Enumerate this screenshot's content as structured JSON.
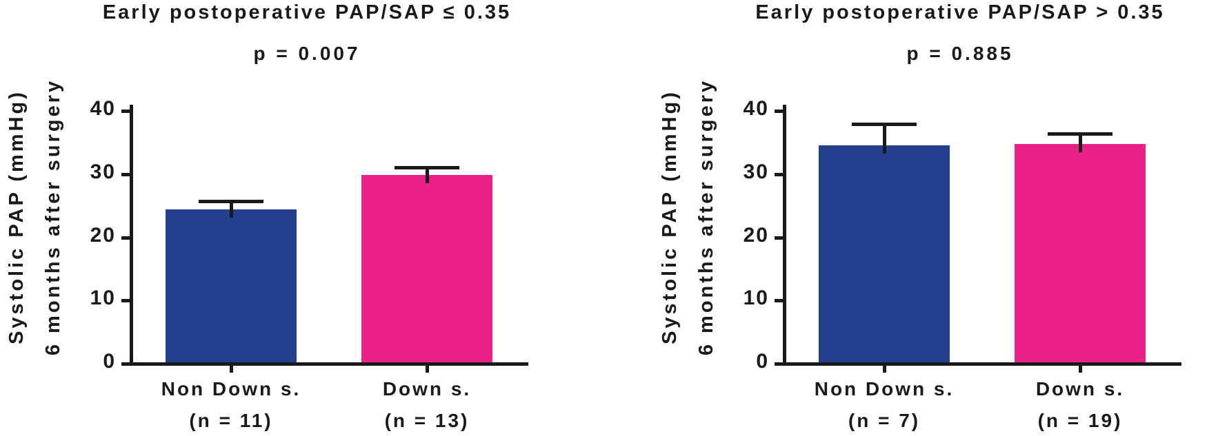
{
  "figure": {
    "background": "#ffffff",
    "text_color": "#1a1a1a",
    "bar_colors": {
      "non_down": "#24408E",
      "down": "#EA2287"
    }
  },
  "chart_data": [
    {
      "type": "bar",
      "title": "Early postoperative PAP/SAP ≤ 0.35",
      "p_label": "p = 0.007",
      "ylabel_line1": "Systolic PAP (mmHg)",
      "ylabel_line2": "6 months after surgery",
      "ylim": [
        0,
        40
      ],
      "yticks": [
        0,
        10,
        20,
        30,
        40
      ],
      "grid": false,
      "legend": "none",
      "categories": [
        "Non Down s.",
        "Down s."
      ],
      "counts": [
        "(n = 11)",
        "(n = 13)"
      ],
      "series": [
        {
          "name": "Non Down s.",
          "value": 24.4,
          "sem": 1.3,
          "color": "#24408E"
        },
        {
          "name": "Down s.",
          "value": 29.9,
          "sem": 1.2,
          "color": "#EA2287"
        }
      ]
    },
    {
      "type": "bar",
      "title": "Early postoperative PAP/SAP > 0.35",
      "p_label": "p = 0.885",
      "ylabel_line1": "Systolic PAP (mmHg)",
      "ylabel_line2": "6 months after surgery",
      "ylim": [
        0,
        40
      ],
      "yticks": [
        0,
        10,
        20,
        30,
        40
      ],
      "grid": false,
      "legend": "none",
      "categories": [
        "Non Down s.",
        "Down s."
      ],
      "counts": [
        "(n = 7)",
        "(n = 19)"
      ],
      "series": [
        {
          "name": "Non Down s.",
          "value": 34.5,
          "sem": 3.4,
          "color": "#24408E"
        },
        {
          "name": "Down s.",
          "value": 34.8,
          "sem": 1.6,
          "color": "#EA2287"
        }
      ]
    }
  ]
}
